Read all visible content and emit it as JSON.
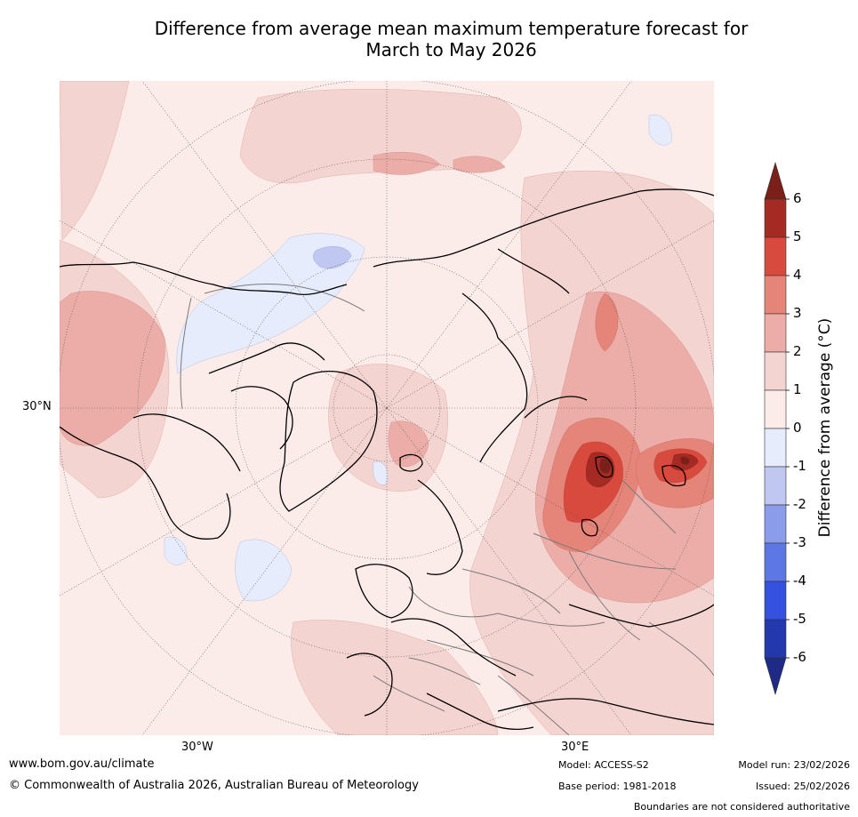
{
  "title": {
    "line1": "Difference from average mean maximum temperature forecast for",
    "line2": "March to May 2026"
  },
  "map": {
    "lat_label": "30°N",
    "lon_labels": [
      "30°W",
      "30°E"
    ]
  },
  "colorbar": {
    "title": "Difference from average (°C)",
    "ticks": [
      "6",
      "5",
      "4",
      "3",
      "2",
      "1",
      "0",
      "-1",
      "-2",
      "-3",
      "-4",
      "-5",
      "-6"
    ],
    "levels": [
      6,
      5,
      4,
      3,
      2,
      1,
      0,
      -1,
      -2,
      -3,
      -4,
      -5,
      -6
    ],
    "colors": {
      "over": "#7b2018",
      "5to6": "#a52a24",
      "4to5": "#d94a3e",
      "3to4": "#e58478",
      "2to3": "#ecaca7",
      "1to2": "#f4d4d1",
      "0to1": "#fbece9",
      "m1to0": "#e6ecfb",
      "m2tom1": "#c0c8f2",
      "m3tom2": "#8a9cea",
      "m4tom3": "#5d78e4",
      "m5tom4": "#3452df",
      "m6tom5": "#2438ae",
      "under": "#1e2a85"
    }
  },
  "footer": {
    "website": "www.bom.gov.au/climate",
    "copyright": "© Commonwealth of Australia 2026, Australian Bureau of Meteorology",
    "model": "Model: ACCESS-S2",
    "base_period": "Base period: 1981-2018",
    "model_run": "Model run: 23/02/2026",
    "issued": "Issued: 25/02/2026",
    "disclaimer": "Boundaries are not considered authoritative"
  }
}
